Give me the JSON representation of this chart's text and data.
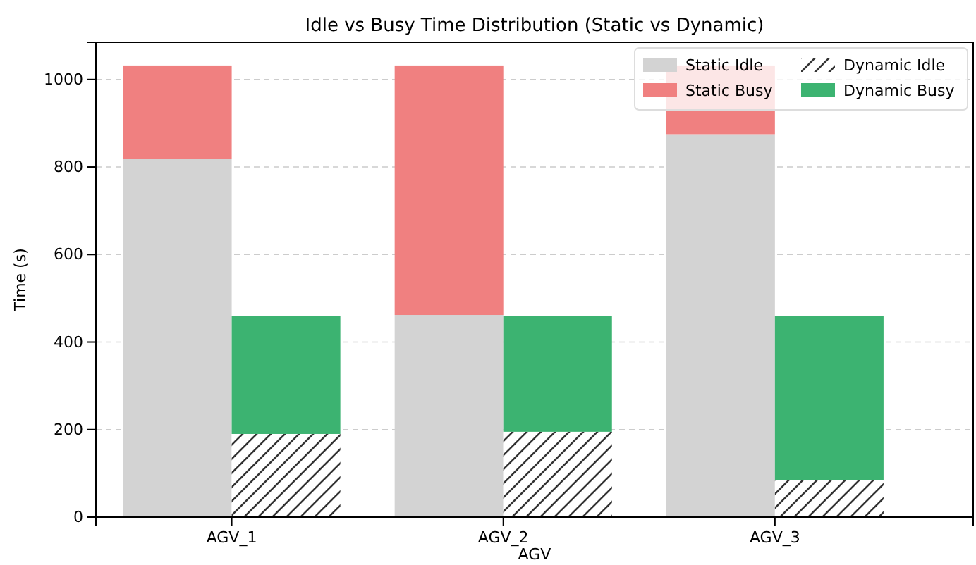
{
  "chart_data": {
    "type": "bar",
    "title": "Idle vs Busy Time Distribution (Static vs Dynamic)",
    "xlabel": "AGV",
    "ylabel": "Time (s)",
    "categories": [
      null,
      null,
      null,
      null,
      null,
      null
    ],
    "stacked": true,
    "annotations": [
      "AGV_1",
      "AGV_2",
      "AGV_3"
    ],
    "series": [
      {
        "name": "Static Idle",
        "color": "#d3d3d3",
        "values": [
          818,
          null,
          462,
          null,
          875,
          null
        ]
      },
      {
        "name": "Static Busy",
        "color": "#f08080",
        "values": [
          214,
          null,
          570,
          null,
          157,
          null
        ]
      },
      {
        "name": "Dynamic Idle",
        "color": "#ffffff",
        "values": [
          null,
          190,
          null,
          195,
          null,
          85
        ]
      },
      {
        "name": "Dynamic Busy",
        "color": "#3cb371",
        "values": [
          null,
          270,
          null,
          265,
          null,
          375
        ]
      }
    ],
    "ylim": [
      0,
      1085
    ],
    "yticks": [
      0,
      200,
      400,
      600,
      800,
      1000
    ],
    "grid": "y",
    "legend": "top right"
  }
}
